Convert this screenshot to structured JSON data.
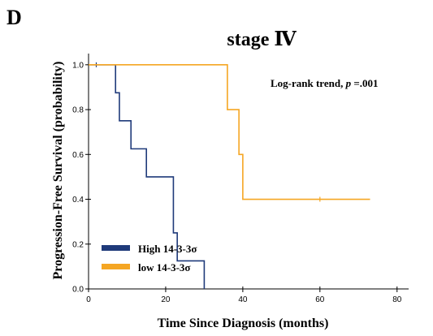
{
  "panel_label": "D",
  "chart_data": {
    "type": "line",
    "title": "stage Ⅳ",
    "xlabel": "Time Since Diagnosis (months)",
    "ylabel": "Progression-Free Survival (probability)",
    "annotation": {
      "prefix": "Log-rank trend, ",
      "italic": "p",
      "suffix": " =.001"
    },
    "xlim": [
      0,
      83
    ],
    "ylim": [
      0,
      1.05
    ],
    "xticks": [
      0,
      20,
      40,
      60,
      80
    ],
    "yticks": [
      0.0,
      0.2,
      0.4,
      0.6,
      0.8,
      1.0
    ],
    "ytick_labels": [
      "0.0",
      "0.2",
      "0.4",
      "0.6",
      "0.8",
      "1.0"
    ],
    "grid": false,
    "legend_position": "bottom-left",
    "series": [
      {
        "name": "High 14-3-3σ",
        "color": "#1f3a7a",
        "step": true,
        "x": [
          0,
          7,
          8,
          9,
          11,
          13,
          15,
          22,
          23,
          24,
          30
        ],
        "y": [
          1.0,
          0.875,
          0.75,
          0.75,
          0.625,
          0.625,
          0.5,
          0.25,
          0.125,
          0.125,
          0.0
        ],
        "censor_x": [
          2
        ],
        "censor_y": [
          1.0
        ]
      },
      {
        "name": "low 14-3-3σ",
        "color": "#f5a623",
        "step": true,
        "x": [
          0,
          36,
          39,
          40,
          73
        ],
        "y": [
          1.0,
          0.8,
          0.6,
          0.4,
          0.4
        ],
        "censor_x": [
          60
        ],
        "censor_y": [
          0.4
        ]
      }
    ]
  }
}
